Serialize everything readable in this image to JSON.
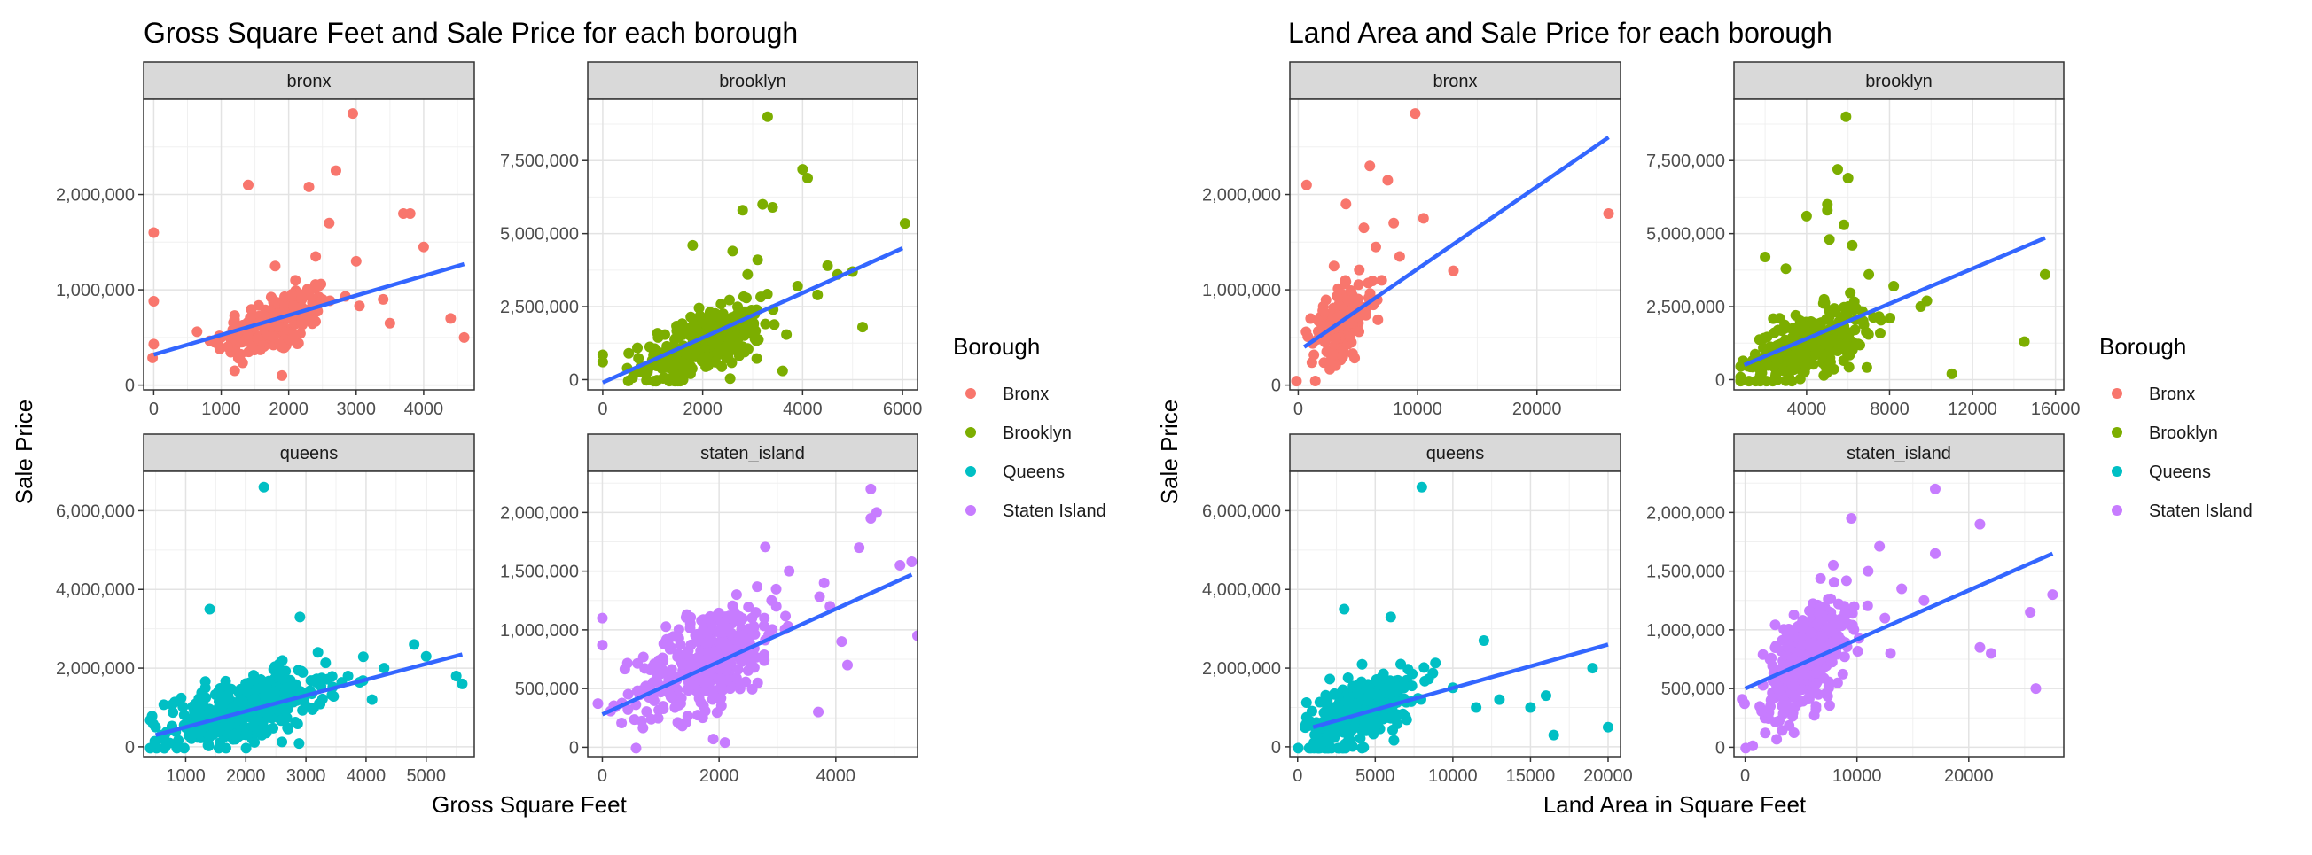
{
  "legend": {
    "title": "Borough",
    "items": [
      {
        "label": "Bronx",
        "color": "#F8766D"
      },
      {
        "label": "Brooklyn",
        "color": "#7CAE00"
      },
      {
        "label": "Queens",
        "color": "#00BFC4"
      },
      {
        "label": "Staten Island",
        "color": "#C77CFF"
      }
    ]
  },
  "line_color": "#3366FF",
  "chart_data": [
    {
      "type": "scatter",
      "title": "Gross Square Feet and Sale Price for each borough",
      "xlabel": "Gross Square Feet",
      "ylabel": "Sale Price",
      "facets": [
        {
          "strip": "bronx",
          "color": "#F8766D",
          "xlim": [
            -150,
            4750
          ],
          "ylim": [
            -50000,
            3000000
          ],
          "xticks": [
            0,
            1000,
            2000,
            3000,
            4000
          ],
          "xtick_labels": [
            "0",
            "1000",
            "2000",
            "3000",
            "4000"
          ],
          "yticks": [
            0,
            1000000,
            2000000
          ],
          "ytick_labels": [
            "0",
            "1,000,000",
            "2,000,000"
          ],
          "trend": [
            [
              0,
              320000
            ],
            [
              4600,
              1270000
            ]
          ],
          "points": [
            [
              0,
              1600000
            ],
            [
              0,
              880000
            ],
            [
              0,
              430000
            ],
            [
              2950,
              2850000
            ],
            [
              1400,
              2100000
            ],
            [
              2300,
              2080000
            ],
            [
              2700,
              2250000
            ],
            [
              3700,
              1800000
            ],
            [
              3800,
              1800000
            ],
            [
              4000,
              1450000
            ],
            [
              2600,
              1700000
            ],
            [
              3000,
              1300000
            ],
            [
              4400,
              700000
            ],
            [
              4600,
              500000
            ],
            [
              3400,
              900000
            ],
            [
              3500,
              650000
            ],
            [
              1800,
              1250000
            ],
            [
              2400,
              1350000
            ],
            [
              1000,
              500000
            ],
            [
              900,
              450000
            ],
            [
              1200,
              150000
            ],
            [
              1900,
              100000
            ],
            [
              2100,
              1100000
            ],
            [
              2500,
              900000
            ]
          ],
          "cloud": [
            {
              "cx": 1800,
              "sx": 450,
              "cy": 650000,
              "sy": 200000,
              "n": 170
            }
          ]
        },
        {
          "strip": "brooklyn",
          "color": "#7CAE00",
          "xlim": [
            -300,
            6300
          ],
          "ylim": [
            -350000,
            9600000
          ],
          "xticks": [
            0,
            2000,
            4000,
            6000
          ],
          "xtick_labels": [
            "0",
            "2000",
            "4000",
            "6000"
          ],
          "yticks": [
            0,
            2500000,
            5000000,
            7500000
          ],
          "ytick_labels": [
            "0",
            "2,500,000",
            "5,000,000",
            "7,500,000"
          ],
          "trend": [
            [
              0,
              -100000
            ],
            [
              6000,
              4500000
            ]
          ],
          "points": [
            [
              3300,
              9000000
            ],
            [
              4000,
              7200000
            ],
            [
              4100,
              6900000
            ],
            [
              3200,
              6000000
            ],
            [
              3400,
              5900000
            ],
            [
              2800,
              5800000
            ],
            [
              1800,
              4600000
            ],
            [
              2600,
              4400000
            ],
            [
              4500,
              3900000
            ],
            [
              5200,
              1800000
            ],
            [
              6050,
              5350000
            ],
            [
              3600,
              300000
            ],
            [
              0,
              850000
            ],
            [
              0,
              600000
            ],
            [
              3900,
              3200000
            ],
            [
              4300,
              2900000
            ],
            [
              2900,
              3600000
            ],
            [
              3100,
              4100000
            ],
            [
              4700,
              3600000
            ],
            [
              5000,
              3700000
            ]
          ],
          "cloud": [
            {
              "cx": 2000,
              "sx": 600,
              "cy": 1200000,
              "sy": 600000,
              "n": 320
            }
          ]
        },
        {
          "strip": "queens",
          "color": "#00BFC4",
          "xlim": [
            300,
            5800
          ],
          "ylim": [
            -250000,
            7000000
          ],
          "xticks": [
            1000,
            2000,
            3000,
            4000,
            5000
          ],
          "xtick_labels": [
            "1000",
            "2000",
            "3000",
            "4000",
            "5000"
          ],
          "yticks": [
            0,
            2000000,
            4000000,
            6000000
          ],
          "ytick_labels": [
            "0",
            "2,000,000",
            "4,000,000",
            "6,000,000"
          ],
          "trend": [
            [
              500,
              300000
            ],
            [
              5600,
              2350000
            ]
          ],
          "points": [
            [
              2300,
              6600000
            ],
            [
              1400,
              3500000
            ],
            [
              2900,
              3300000
            ],
            [
              5500,
              1800000
            ],
            [
              5600,
              1600000
            ],
            [
              5000,
              2300000
            ],
            [
              4800,
              2600000
            ],
            [
              4300,
              2000000
            ],
            [
              3200,
              2400000
            ],
            [
              3700,
              1800000
            ],
            [
              4100,
              1200000
            ],
            [
              500,
              500000
            ],
            [
              600,
              300000
            ]
          ],
          "cloud": [
            {
              "cx": 2000,
              "sx": 650,
              "cy": 950000,
              "sy": 480000,
              "n": 380
            }
          ]
        },
        {
          "strip": "staten_island",
          "color": "#C77CFF",
          "xlim": [
            -250,
            5400
          ],
          "ylim": [
            -80000,
            2350000
          ],
          "xticks": [
            0,
            2000,
            4000
          ],
          "xtick_labels": [
            "0",
            "2000",
            "4000"
          ],
          "yticks": [
            0,
            500000,
            1000000,
            1500000,
            2000000
          ],
          "ytick_labels": [
            "0",
            "500,000",
            "1,000,000",
            "1,500,000",
            "2,000,000"
          ],
          "trend": [
            [
              0,
              280000
            ],
            [
              5300,
              1470000
            ]
          ],
          "points": [
            [
              4600,
              2200000
            ],
            [
              4700,
              2000000
            ],
            [
              4600,
              1950000
            ],
            [
              0,
              1100000
            ],
            [
              0,
              870000
            ],
            [
              5300,
              1580000
            ],
            [
              5100,
              1550000
            ],
            [
              5400,
              950000
            ],
            [
              4400,
              1700000
            ],
            [
              3800,
              1400000
            ],
            [
              3900,
              1200000
            ],
            [
              4100,
              900000
            ],
            [
              4200,
              700000
            ],
            [
              3700,
              300000
            ],
            [
              2900,
              1250000
            ],
            [
              3200,
              1500000
            ],
            [
              2300,
              1300000
            ],
            [
              1900,
              70000
            ],
            [
              2100,
              40000
            ]
          ],
          "cloud": [
            {
              "cx": 1800,
              "sx": 600,
              "cy": 750000,
              "sy": 250000,
              "n": 380
            }
          ]
        }
      ]
    },
    {
      "type": "scatter",
      "title": "Land Area and Sale Price for each borough",
      "xlabel": "Land Area in Square Feet",
      "ylabel": "Sale Price",
      "facets": [
        {
          "strip": "bronx",
          "color": "#F8766D",
          "xlim": [
            -700,
            27000
          ],
          "ylim": [
            -50000,
            3000000
          ],
          "xticks": [
            0,
            10000,
            20000
          ],
          "xtick_labels": [
            "0",
            "10000",
            "20000"
          ],
          "yticks": [
            0,
            1000000,
            2000000
          ],
          "ytick_labels": [
            "0",
            "1,000,000",
            "2,000,000"
          ],
          "trend": [
            [
              500,
              400000
            ],
            [
              26000,
              2600000
            ]
          ],
          "points": [
            [
              9800,
              2850000
            ],
            [
              700,
              2100000
            ],
            [
              6000,
              2300000
            ],
            [
              7500,
              2150000
            ],
            [
              10500,
              1750000
            ],
            [
              13000,
              1200000
            ],
            [
              26000,
              1800000
            ],
            [
              8000,
              1700000
            ],
            [
              8500,
              1350000
            ],
            [
              5500,
              1650000
            ],
            [
              6500,
              1450000
            ],
            [
              4000,
              1900000
            ],
            [
              3000,
              1250000
            ],
            [
              7000,
              1100000
            ]
          ],
          "cloud": [
            {
              "cx": 3700,
              "sx": 1300,
              "cy": 650000,
              "sy": 200000,
              "n": 170
            }
          ]
        },
        {
          "strip": "brooklyn",
          "color": "#7CAE00",
          "xlim": [
            500,
            16400
          ],
          "ylim": [
            -350000,
            9600000
          ],
          "xticks": [
            4000,
            8000,
            12000,
            16000
          ],
          "xtick_labels": [
            "4000",
            "8000",
            "12000",
            "16000"
          ],
          "yticks": [
            0,
            2500000,
            5000000,
            7500000
          ],
          "ytick_labels": [
            "0",
            "2,500,000",
            "5,000,000",
            "7,500,000"
          ],
          "trend": [
            [
              1000,
              500000
            ],
            [
              15500,
              4850000
            ]
          ],
          "points": [
            [
              5900,
              9000000
            ],
            [
              5500,
              7200000
            ],
            [
              6000,
              6900000
            ],
            [
              5000,
              6000000
            ],
            [
              5000,
              5800000
            ],
            [
              4000,
              5600000
            ],
            [
              5800,
              5300000
            ],
            [
              5100,
              4800000
            ],
            [
              6200,
              4600000
            ],
            [
              2000,
              4200000
            ],
            [
              15500,
              3600000
            ],
            [
              14500,
              1300000
            ],
            [
              11000,
              200000
            ],
            [
              9500,
              2500000
            ],
            [
              9800,
              2700000
            ],
            [
              8200,
              3200000
            ],
            [
              7000,
              3600000
            ],
            [
              3000,
              3800000
            ]
          ],
          "cloud": [
            {
              "cx": 4000,
              "sx": 1400,
              "cy": 1200000,
              "sy": 600000,
              "n": 320
            }
          ]
        },
        {
          "strip": "queens",
          "color": "#00BFC4",
          "xlim": [
            -500,
            20800
          ],
          "ylim": [
            -250000,
            7000000
          ],
          "xticks": [
            0,
            5000,
            10000,
            15000,
            20000
          ],
          "xtick_labels": [
            "0",
            "5000",
            "10000",
            "15000",
            "20000"
          ],
          "yticks": [
            0,
            2000000,
            4000000,
            6000000
          ],
          "ytick_labels": [
            "0",
            "2,000,000",
            "4,000,000",
            "6,000,000"
          ],
          "trend": [
            [
              1000,
              500000
            ],
            [
              20000,
              2600000
            ]
          ],
          "points": [
            [
              8000,
              6600000
            ],
            [
              3000,
              3500000
            ],
            [
              6000,
              3300000
            ],
            [
              20000,
              500000
            ],
            [
              19000,
              2000000
            ],
            [
              16000,
              1300000
            ],
            [
              16500,
              300000
            ],
            [
              15000,
              1000000
            ],
            [
              12000,
              2700000
            ],
            [
              11500,
              1000000
            ],
            [
              13000,
              1200000
            ],
            [
              10000,
              1500000
            ]
          ],
          "cloud": [
            {
              "cx": 4000,
              "sx": 1700,
              "cy": 900000,
              "sy": 480000,
              "n": 380
            }
          ]
        },
        {
          "strip": "staten_island",
          "color": "#C77CFF",
          "xlim": [
            -1000,
            28500
          ],
          "ylim": [
            -80000,
            2350000
          ],
          "xticks": [
            0,
            10000,
            20000
          ],
          "xtick_labels": [
            "0",
            "10000",
            "20000"
          ],
          "yticks": [
            0,
            500000,
            1000000,
            1500000,
            2000000
          ],
          "ytick_labels": [
            "0",
            "500,000",
            "1,000,000",
            "1,500,000",
            "2,000,000"
          ],
          "trend": [
            [
              0,
              500000
            ],
            [
              27500,
              1650000
            ]
          ],
          "points": [
            [
              17000,
              2200000
            ],
            [
              21000,
              1900000
            ],
            [
              27500,
              1300000
            ],
            [
              25500,
              1150000
            ],
            [
              26000,
              500000
            ],
            [
              21000,
              850000
            ],
            [
              22000,
              800000
            ],
            [
              17000,
              1650000
            ],
            [
              16000,
              1250000
            ],
            [
              14000,
              1350000
            ],
            [
              13000,
              800000
            ],
            [
              9500,
              1950000
            ],
            [
              11000,
              1500000
            ],
            [
              12500,
              1100000
            ]
          ],
          "cloud": [
            {
              "cx": 5500,
              "sx": 1800,
              "cy": 750000,
              "sy": 250000,
              "n": 380
            }
          ]
        }
      ]
    }
  ]
}
